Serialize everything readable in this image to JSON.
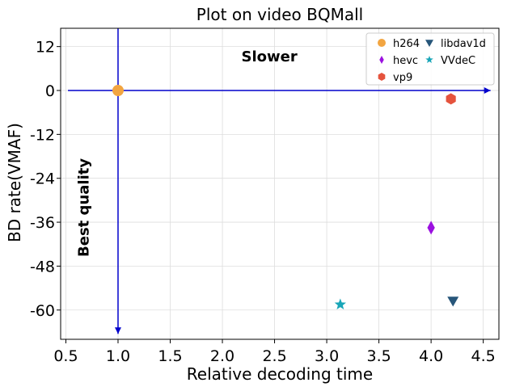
{
  "chart_data": {
    "type": "scatter",
    "title": "Plot on video BQMall",
    "xlabel": "Relative decoding time",
    "ylabel": "BD rate(VMAF)",
    "xlim": [
      0.45,
      4.65
    ],
    "ylim": [
      -68,
      17
    ],
    "xticks": [
      0.5,
      1.0,
      1.5,
      2.0,
      2.5,
      3.0,
      3.5,
      4.0,
      4.5
    ],
    "xtick_labels": [
      "0.5",
      "1.0",
      "1.5",
      "2.0",
      "2.5",
      "3.0",
      "3.5",
      "4.0",
      "4.5"
    ],
    "yticks": [
      12,
      0,
      -12,
      -24,
      -36,
      -48,
      -60
    ],
    "ytick_labels": [
      "12",
      "0",
      "-12",
      "-24",
      "-36",
      "-48",
      "-60"
    ],
    "grid": true,
    "legend_position": "top-right",
    "series": [
      {
        "name": "h264",
        "marker": "circle",
        "color": "#f2a541",
        "x": [
          1.0
        ],
        "y": [
          0
        ]
      },
      {
        "name": "hevc",
        "marker": "thin-diamond",
        "color": "#9b10e0",
        "x": [
          4.0
        ],
        "y": [
          -37.5
        ]
      },
      {
        "name": "vp9",
        "marker": "hexagon",
        "color": "#e5533d",
        "x": [
          4.19
        ],
        "y": [
          -2.3
        ]
      },
      {
        "name": "libdav1d",
        "marker": "triangle-down",
        "color": "#27567a",
        "x": [
          4.21
        ],
        "y": [
          -57.5
        ]
      },
      {
        "name": "VVdeC",
        "marker": "star",
        "color": "#19a6b8",
        "x": [
          3.13
        ],
        "y": [
          -58.5
        ]
      }
    ],
    "annotations": [
      {
        "text": "Slower",
        "x": 2.45,
        "y": 9,
        "rotation": 0
      },
      {
        "text": "Best quality",
        "x": 0.68,
        "y": -32,
        "rotation": -90
      }
    ],
    "arrows": [
      {
        "from": [
          0.52,
          0
        ],
        "to": [
          4.57,
          0
        ],
        "color": "#0000cc"
      },
      {
        "from": [
          1.0,
          17
        ],
        "to": [
          1.0,
          -66.5
        ],
        "color": "#0000cc"
      }
    ]
  }
}
